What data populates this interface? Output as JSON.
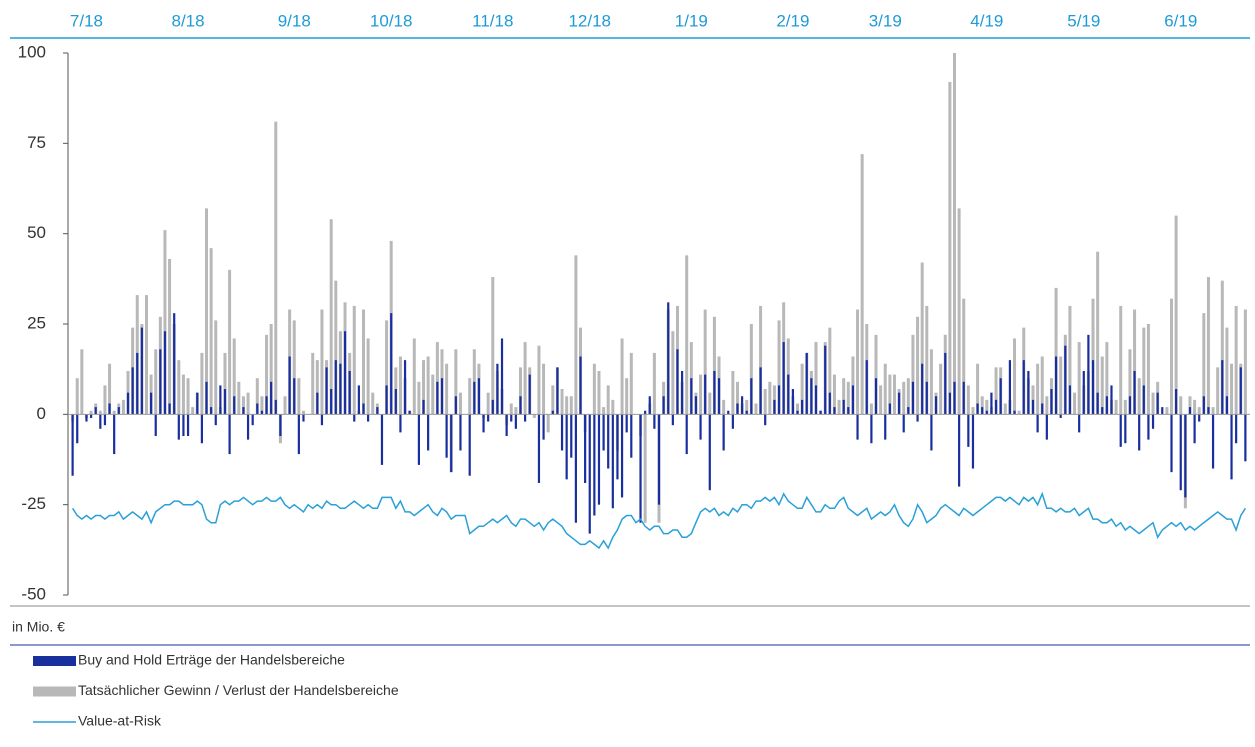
{
  "chart_data": {
    "type": "bar_line",
    "unit_label": "in Mio. €",
    "xlim": [
      -1,
      255
    ],
    "xticks": [
      {
        "value": 3,
        "label": "7/18"
      },
      {
        "value": 25,
        "label": "8/18"
      },
      {
        "value": 48,
        "label": "9/18"
      },
      {
        "value": 69,
        "label": "10/18"
      },
      {
        "value": 91,
        "label": "11/18"
      },
      {
        "value": 112,
        "label": "12/18"
      },
      {
        "value": 134,
        "label": "1/19"
      },
      {
        "value": 156,
        "label": "2/19"
      },
      {
        "value": 176,
        "label": "3/19"
      },
      {
        "value": 198,
        "label": "4/19"
      },
      {
        "value": 219,
        "label": "5/19"
      },
      {
        "value": 240,
        "label": "6/19"
      }
    ],
    "ylim": [
      -50,
      100
    ],
    "yticks": [
      100,
      75,
      50,
      25,
      0,
      -25,
      -50
    ],
    "series": [
      {
        "name": "Buy and Hold Erträge der Handelsbereiche",
        "kind": "bar",
        "color": "#1a2f9e",
        "values": [
          -17,
          -8,
          0,
          -2,
          -1,
          2,
          -4,
          -3,
          3,
          -11,
          2,
          0,
          6,
          13,
          17,
          24,
          0,
          6,
          -6,
          18,
          23,
          3,
          28,
          -7,
          -6,
          -6,
          0,
          6,
          -8,
          9,
          2,
          -3,
          8,
          7,
          -11,
          5,
          0,
          2,
          -7,
          -3,
          3,
          1,
          5,
          9,
          4,
          -6,
          0,
          16,
          10,
          -11,
          -2,
          0,
          0,
          6,
          -3,
          13,
          7,
          15,
          14,
          23,
          12,
          -2,
          8,
          3,
          -2,
          0,
          2,
          -14,
          8,
          28,
          7,
          -5,
          15,
          1,
          0,
          -14,
          4,
          -10,
          0,
          9,
          10,
          -12,
          -16,
          5,
          -10,
          0,
          -17,
          9,
          10,
          -5,
          -2,
          4,
          14,
          21,
          -6,
          -2,
          -4,
          5,
          -2,
          11,
          0,
          -19,
          -7,
          0,
          1,
          13,
          -10,
          -18,
          -12,
          -30,
          16,
          -19,
          -33,
          -28,
          -25,
          -10,
          -15,
          -26,
          -18,
          -23,
          -5,
          -12,
          0,
          -30,
          1,
          5,
          -4,
          -25,
          5,
          31,
          -3,
          18,
          12,
          -11,
          10,
          5,
          -7,
          11,
          -21,
          12,
          10,
          -10,
          1,
          -4,
          3,
          5,
          1,
          10,
          0,
          13,
          -3,
          0,
          4,
          8,
          20,
          11,
          7,
          1,
          4,
          17,
          10,
          8,
          1,
          19,
          6,
          2,
          0,
          4,
          2,
          8,
          -7,
          0,
          15,
          -8,
          10,
          0,
          -7,
          3,
          0,
          6,
          -5,
          2,
          9,
          -2,
          14,
          9,
          -10,
          5,
          0,
          17,
          6,
          9,
          -20,
          9,
          -9,
          -15,
          3,
          2,
          1,
          6,
          4,
          10,
          0,
          15,
          1,
          0,
          15,
          12,
          4,
          -5,
          3,
          -7,
          7,
          16,
          -1,
          19,
          8,
          0,
          -5,
          12,
          22,
          15,
          6,
          2,
          5,
          8,
          0,
          -9,
          -8,
          5,
          12,
          -10,
          8,
          -7,
          -4,
          6,
          2,
          0,
          -16,
          7,
          -21,
          -23,
          2,
          -8,
          -2,
          5,
          2,
          -15,
          0,
          15,
          5,
          -18,
          -8,
          13,
          -13
        ]
      },
      {
        "name": "Tatsächlicher Gewinn / Verlust der Handelsbereiche",
        "kind": "bar",
        "color": "#b8b8b8",
        "values": [
          -2,
          10,
          18,
          -1,
          1,
          3,
          1,
          8,
          14,
          1,
          3,
          4,
          12,
          24,
          33,
          25,
          33,
          11,
          18,
          27,
          51,
          43,
          25,
          15,
          11,
          10,
          2,
          6,
          17,
          57,
          46,
          26,
          2,
          17,
          40,
          21,
          9,
          5,
          6,
          0,
          10,
          5,
          22,
          25,
          81,
          -8,
          5,
          29,
          26,
          10,
          1,
          0,
          17,
          15,
          29,
          15,
          54,
          37,
          23,
          31,
          17,
          30,
          1,
          29,
          21,
          6,
          3,
          0,
          26,
          48,
          13,
          16,
          10,
          1,
          21,
          9,
          15,
          16,
          11,
          20,
          18,
          14,
          -16,
          18,
          6,
          0,
          10,
          18,
          14,
          -1,
          6,
          38,
          12,
          7,
          -3,
          3,
          2,
          13,
          20,
          13,
          -1,
          19,
          14,
          -5,
          8,
          13,
          7,
          5,
          5,
          44,
          24,
          -5,
          0,
          14,
          12,
          2,
          8,
          4,
          -10,
          21,
          10,
          17,
          0,
          -6,
          -30,
          3,
          17,
          -30,
          9,
          29,
          23,
          30,
          9,
          44,
          20,
          6,
          11,
          29,
          6,
          27,
          16,
          4,
          0,
          12,
          9,
          3,
          4,
          25,
          3,
          30,
          7,
          9,
          8,
          26,
          31,
          21,
          5,
          3,
          14,
          17,
          12,
          20,
          1,
          20,
          24,
          11,
          4,
          10,
          9,
          16,
          29,
          72,
          25,
          3,
          22,
          8,
          14,
          11,
          11,
          7,
          9,
          10,
          22,
          27,
          42,
          30,
          18,
          6,
          14,
          22,
          92,
          100,
          57,
          32,
          8,
          2,
          14,
          5,
          4,
          2,
          13,
          13,
          3,
          4,
          21,
          1,
          24,
          10,
          8,
          14,
          16,
          5,
          10,
          35,
          16,
          22,
          30,
          6,
          20,
          8,
          12,
          32,
          45,
          16,
          20,
          4,
          4,
          30,
          4,
          18,
          29,
          10,
          24,
          25,
          6,
          9,
          0,
          2,
          32,
          55,
          5,
          -26,
          5,
          4,
          2,
          28,
          38,
          2,
          13,
          37,
          24,
          14,
          30,
          14,
          29
        ]
      },
      {
        "name": "Value-at-Risk",
        "kind": "line",
        "color": "#2aa0d8",
        "values": [
          -26,
          -28,
          -29,
          -28,
          -29,
          -28,
          -28,
          -29,
          -28,
          -28,
          -27,
          -29,
          -28,
          -27,
          -28,
          -29,
          -27,
          -30,
          -27,
          -26,
          -25,
          -25,
          -24,
          -24,
          -25,
          -25,
          -25,
          -24,
          -25,
          -29,
          -30,
          -30,
          -25,
          -24,
          -25,
          -24,
          -24,
          -23,
          -24,
          -25,
          -24,
          -24,
          -23,
          -24,
          -24,
          -23,
          -25,
          -26,
          -25,
          -26,
          -27,
          -25,
          -26,
          -25,
          -26,
          -24,
          -25,
          -25,
          -26,
          -26,
          -25,
          -24,
          -25,
          -26,
          -25,
          -26,
          -26,
          -23,
          -23,
          -23,
          -26,
          -24,
          -27,
          -27,
          -28,
          -27,
          -26,
          -25,
          -27,
          -28,
          -26,
          -27,
          -29,
          -28,
          -28,
          -28,
          -33,
          -32,
          -31,
          -31,
          -30,
          -29,
          -30,
          -29,
          -28,
          -30,
          -31,
          -29,
          -29,
          -30,
          -31,
          -30,
          -32,
          -30,
          -29,
          -30,
          -31,
          -33,
          -34,
          -35,
          -36,
          -36,
          -35,
          -36,
          -37,
          -35,
          -37,
          -34,
          -32,
          -29,
          -28,
          -28,
          -30,
          -29,
          -31,
          -32,
          -31,
          -31,
          -33,
          -33,
          -32,
          -32,
          -34,
          -34,
          -33,
          -30,
          -27,
          -26,
          -27,
          -26,
          -28,
          -27,
          -28,
          -26,
          -27,
          -25,
          -25,
          -26,
          -24,
          -24,
          -23,
          -24,
          -23,
          -25,
          -22,
          -24,
          -25,
          -26,
          -26,
          -23,
          -25,
          -27,
          -27,
          -25,
          -26,
          -26,
          -24,
          -23,
          -26,
          -27,
          -28,
          -27,
          -26,
          -29,
          -28,
          -27,
          -28,
          -27,
          -25,
          -28,
          -30,
          -31,
          -29,
          -25,
          -27,
          -30,
          -29,
          -28,
          -26,
          -25,
          -26,
          -27,
          -28,
          -26,
          -27,
          -28,
          -27,
          -26,
          -25,
          -24,
          -23,
          -23,
          -24,
          -23,
          -24,
          -25,
          -23,
          -24,
          -23,
          -25,
          -22,
          -26,
          -26,
          -27,
          -26,
          -27,
          -27,
          -26,
          -28,
          -27,
          -26,
          -29,
          -29,
          -30,
          -30,
          -29,
          -31,
          -30,
          -32,
          -31,
          -32,
          -33,
          -32,
          -31,
          -30,
          -34,
          -32,
          -31,
          -30,
          -31,
          -30,
          -32,
          -31,
          -32,
          -31,
          -30,
          -29,
          -28,
          -27,
          -28,
          -29,
          -29,
          -32,
          -28,
          -26
        ]
      }
    ]
  }
}
